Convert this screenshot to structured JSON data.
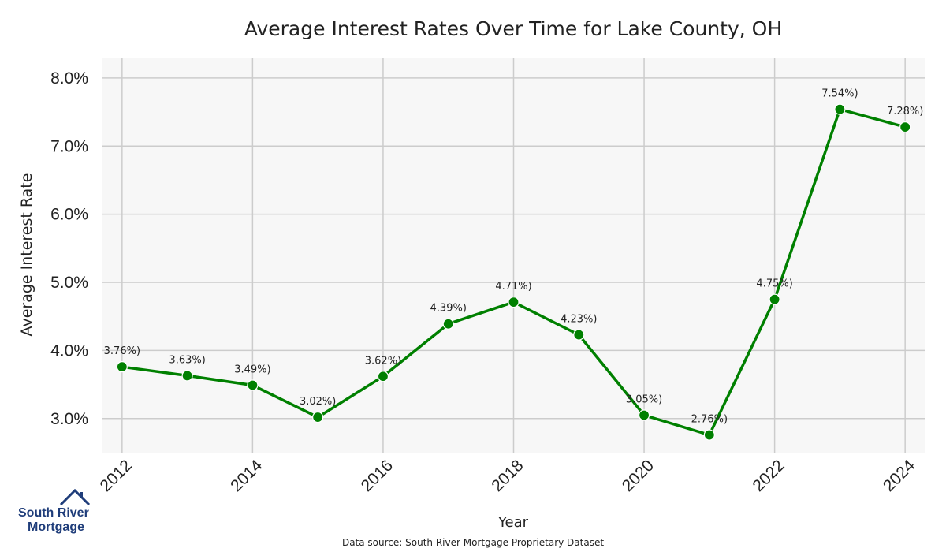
{
  "chart_data": {
    "type": "line",
    "title": "Average Interest Rates Over Time for Lake County, OH",
    "xlabel": "Year",
    "ylabel": "Average Interest Rate",
    "x": [
      2012,
      2013,
      2014,
      2015,
      2016,
      2017,
      2018,
      2019,
      2020,
      2021,
      2022,
      2023,
      2024
    ],
    "values": [
      3.76,
      3.63,
      3.49,
      3.02,
      3.62,
      4.39,
      4.71,
      4.23,
      3.05,
      2.76,
      4.75,
      7.54,
      7.28
    ],
    "point_labels": [
      "3.76%)",
      "3.63%)",
      "3.49%)",
      "3.02%)",
      "3.62%)",
      "4.39%)",
      "4.71%)",
      "4.23%)",
      "3.05%)",
      "2.76%)",
      "4.75%)",
      "7.54%)",
      "7.28%)"
    ],
    "x_ticks": [
      "2012",
      "2014",
      "2016",
      "2018",
      "2020",
      "2022",
      "2024"
    ],
    "y_ticks": [
      "3.0%",
      "4.0%",
      "5.0%",
      "6.0%",
      "7.0%",
      "8.0%"
    ],
    "y_tick_values": [
      3,
      4,
      5,
      6,
      7,
      8
    ],
    "xlim": [
      2011.7,
      2024.3
    ],
    "ylim": [
      2.5,
      8.3
    ],
    "grid": true,
    "line_color": "#008000",
    "background_color": "#f7f7f7",
    "grid_color": "#cccccc"
  },
  "footer": {
    "source": "Data source: South River Mortgage Proprietary Dataset"
  },
  "logo": {
    "line1": "South River",
    "line2": "Mortgage",
    "color": "#1f3d7a"
  }
}
